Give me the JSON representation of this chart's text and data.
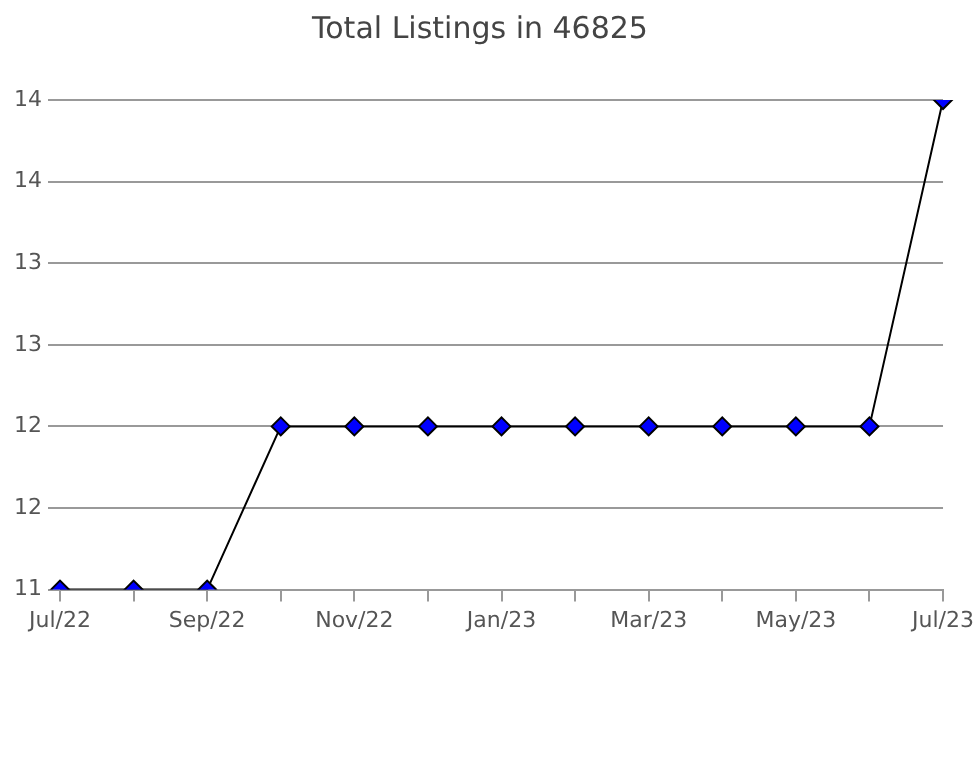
{
  "chart_data": {
    "type": "line",
    "title": "Total Listings in 46825",
    "categories": [
      "Jul/22",
      null,
      "Sep/22",
      null,
      "Nov/22",
      null,
      "Jan/23",
      null,
      "Mar/23",
      null,
      "May/23",
      null,
      "Jul/23"
    ],
    "series": [
      {
        "color": "#0000ff",
        "values": [
          11,
          11,
          11,
          12,
          12,
          12,
          12,
          12,
          12,
          12,
          12,
          12,
          14
        ]
      }
    ],
    "ylim": [
      11,
      14
    ],
    "yticks": [
      11,
      {
        "value": 11.5,
        "label": "12"
      },
      12,
      {
        "value": 12.5,
        "label": "13"
      },
      13,
      {
        "value": 13.5,
        "label": "14"
      },
      14
    ],
    "grid": "y",
    "legend": false,
    "marker": "diamond",
    "line_style": "solid"
  }
}
